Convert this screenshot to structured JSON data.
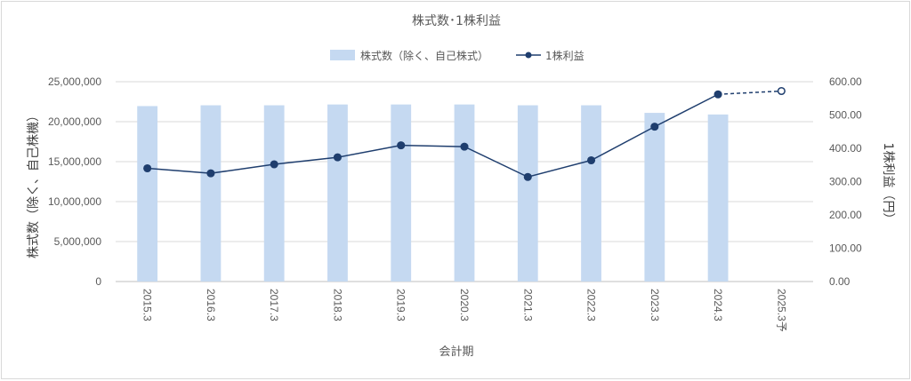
{
  "chart_data": {
    "type": "bar+line",
    "title": "株式数･1株利益",
    "xlabel": "会計期",
    "ylabel_left": "株式数（除く、自己株機）",
    "ylabel_right": "1株利益（円）",
    "categories": [
      "2015.3",
      "2016.3",
      "2017.3",
      "2018.3",
      "2019.3",
      "2020.3",
      "2021.3",
      "2022.3",
      "2023.3",
      "2024.3",
      "2025.3予"
    ],
    "y_left": {
      "lim": [
        0,
        25000000
      ],
      "ticks": [
        "0",
        "5,000,000",
        "10,000,000",
        "15,000,000",
        "20,000,000",
        "25,000,000"
      ]
    },
    "y_right": {
      "lim": [
        0,
        600
      ],
      "ticks": [
        "0.00",
        "100.00",
        "200.00",
        "300.00",
        "400.00",
        "500.00",
        "600.00"
      ]
    },
    "series": [
      {
        "name": "株式数（除く、自己株式）",
        "type": "bar",
        "axis": "left",
        "values": [
          21950000,
          22050000,
          22050000,
          22150000,
          22150000,
          22150000,
          22050000,
          22050000,
          21100000,
          20900000,
          null
        ]
      },
      {
        "name": "1株利益",
        "type": "line",
        "axis": "right",
        "values": [
          340,
          325,
          352,
          373,
          409,
          405,
          314,
          364,
          465,
          562,
          572
        ],
        "forecast_from_index": 9
      }
    ],
    "colors": {
      "bar": "#c5d9f1",
      "line": "#1f3e6e",
      "grid": "#d9d9d9",
      "axis": "#bfbfbf"
    },
    "grid": true,
    "legend_position": "top"
  }
}
